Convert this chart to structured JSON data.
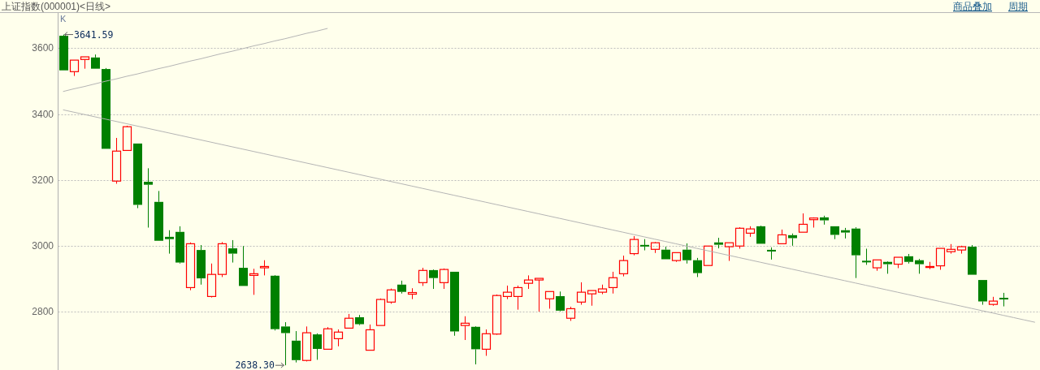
{
  "chart_data": {
    "type": "candlestick",
    "title": "上证指数(000001)<日线>",
    "categories": [
      null,
      null,
      null,
      null,
      null,
      null,
      null,
      null,
      null,
      null,
      null,
      null,
      null,
      null,
      null,
      null,
      null,
      null,
      null,
      null,
      null,
      null,
      null,
      null,
      null,
      null,
      null,
      null,
      null,
      null,
      null,
      null,
      null,
      null,
      null,
      null,
      null,
      null,
      null,
      null,
      null,
      null,
      null,
      null,
      null,
      null,
      null,
      null,
      null,
      null,
      null,
      null,
      null,
      null,
      null,
      null,
      null,
      null,
      null,
      null,
      null,
      null,
      null,
      null,
      null,
      null,
      null,
      null,
      null,
      null,
      null,
      null,
      null,
      null,
      null,
      null,
      null,
      null,
      null,
      null,
      null,
      null,
      null,
      null,
      null,
      null,
      null,
      null,
      null,
      null,
      null,
      null,
      null
    ],
    "ohlc": [
      [
        3638,
        3641.59,
        3533,
        3533
      ],
      [
        3529,
        3564,
        3516,
        3564
      ],
      [
        3566,
        3574,
        3538,
        3574
      ],
      [
        3572,
        3581,
        3538,
        3538
      ],
      [
        3537,
        3540,
        3295,
        3295
      ],
      [
        3197,
        3328,
        3189,
        3288
      ],
      [
        3290,
        3365,
        3290,
        3362
      ],
      [
        3311,
        3311,
        3115,
        3125
      ],
      [
        3195,
        3236,
        3056,
        3186
      ],
      [
        3134,
        3167,
        3016,
        3016
      ],
      [
        3028,
        3048,
        2977,
        3021
      ],
      [
        3043,
        3060,
        2947,
        2950
      ],
      [
        2874,
        3011,
        2866,
        3007
      ],
      [
        2988,
        3003,
        2883,
        2902
      ],
      [
        2847,
        2947,
        2844,
        2914
      ],
      [
        2914,
        3012,
        2906,
        3007
      ],
      [
        2993,
        3018,
        2950,
        2977
      ],
      [
        2934,
        3000,
        2879,
        2879
      ],
      [
        2911,
        2931,
        2852,
        2916
      ],
      [
        2934,
        2957,
        2911,
        2938
      ],
      [
        2910,
        2912,
        2744,
        2748
      ],
      [
        2756,
        2769,
        2638.3,
        2736
      ],
      [
        2713,
        2742,
        2647,
        2654
      ],
      [
        2653,
        2756,
        2650,
        2737
      ],
      [
        2732,
        2735,
        2655,
        2688
      ],
      [
        2687,
        2754,
        2687,
        2749
      ],
      [
        2719,
        2747,
        2696,
        2739
      ],
      [
        2751,
        2794,
        2751,
        2781
      ],
      [
        2784,
        2791,
        2760,
        2763
      ],
      [
        2684,
        2762,
        2684,
        2746
      ],
      [
        2759,
        2841,
        2759,
        2838
      ],
      [
        2830,
        2871,
        2825,
        2867
      ],
      [
        2883,
        2895,
        2856,
        2861
      ],
      [
        2854,
        2872,
        2839,
        2859
      ],
      [
        2889,
        2934,
        2879,
        2926
      ],
      [
        2927,
        2929,
        2870,
        2903
      ],
      [
        2889,
        2932,
        2870,
        2929
      ],
      [
        2922,
        2922,
        2728,
        2741
      ],
      [
        2759,
        2787,
        2715,
        2766
      ],
      [
        2755,
        2757,
        2641,
        2687
      ],
      [
        2687,
        2747,
        2667,
        2734
      ],
      [
        2733,
        2853,
        2731,
        2850
      ],
      [
        2847,
        2880,
        2839,
        2860
      ],
      [
        2847,
        2880,
        2807,
        2874
      ],
      [
        2887,
        2911,
        2870,
        2897
      ],
      [
        2897,
        2902,
        2801,
        2902
      ],
      [
        2840,
        2862,
        2810,
        2862
      ],
      [
        2848,
        2862,
        2802,
        2804
      ],
      [
        2781,
        2816,
        2773,
        2810
      ],
      [
        2830,
        2890,
        2822,
        2860
      ],
      [
        2855,
        2865,
        2819,
        2865
      ],
      [
        2860,
        2883,
        2854,
        2870
      ],
      [
        2874,
        2922,
        2856,
        2904
      ],
      [
        2916,
        2971,
        2908,
        2956
      ],
      [
        2977,
        3030,
        2972,
        3020
      ],
      [
        3003,
        3021,
        2987,
        2999
      ],
      [
        2990,
        3012,
        2979,
        3010
      ],
      [
        2989,
        2998,
        2960,
        2960
      ],
      [
        2956,
        2980,
        2952,
        2980
      ],
      [
        2989,
        3008,
        2947,
        2957
      ],
      [
        2957,
        2964,
        2906,
        2918
      ],
      [
        2941,
        3000,
        2941,
        3000
      ],
      [
        3011,
        3025,
        2993,
        3004
      ],
      [
        2998,
        3010,
        2955,
        3010
      ],
      [
        3000,
        3057,
        2992,
        3054
      ],
      [
        3039,
        3060,
        3028,
        3052
      ],
      [
        3060,
        3062,
        3007,
        3007
      ],
      [
        2988,
        2996,
        2959,
        2984
      ],
      [
        3007,
        3050,
        3007,
        3034
      ],
      [
        3033,
        3038,
        3001,
        3024
      ],
      [
        3042,
        3099,
        3042,
        3066
      ],
      [
        3080,
        3087,
        3056,
        3085
      ],
      [
        3087,
        3092,
        3065,
        3078
      ],
      [
        3060,
        3060,
        3021,
        3034
      ],
      [
        3048,
        3055,
        3023,
        3041
      ],
      [
        3053,
        3057,
        2903,
        2972
      ],
      [
        2954,
        2992,
        2943,
        2952
      ],
      [
        2934,
        2958,
        2925,
        2958
      ],
      [
        2952,
        2954,
        2916,
        2945
      ],
      [
        2945,
        2966,
        2933,
        2966
      ],
      [
        2969,
        2976,
        2947,
        2952
      ],
      [
        2957,
        2961,
        2916,
        2945
      ],
      [
        2935,
        2952,
        2930,
        2938
      ],
      [
        2940,
        2993,
        2928,
        2993
      ],
      [
        2983,
        3006,
        2977,
        2990
      ],
      [
        2988,
        3001,
        2977,
        2998
      ],
      [
        2998,
        3003,
        2913,
        2913
      ],
      [
        2897,
        2897,
        2822,
        2832
      ],
      [
        2823,
        2846,
        2819,
        2833
      ],
      [
        2843,
        2858,
        2817,
        2838
      ],
      null,
      null,
      null
    ],
    "colors": [
      "#008000",
      "#ff0000",
      "#ff0000",
      "#008000",
      "#008000",
      "#ff0000",
      "#ff0000",
      "#008000",
      "#008000",
      "#008000",
      "#008000",
      "#008000",
      "#ff0000",
      "#008000",
      "#ff0000",
      "#ff0000",
      "#008000",
      "#008000",
      "#ff0000",
      "#ff0000",
      "#008000",
      "#008000",
      "#008000",
      "#ff0000",
      "#008000",
      "#ff0000",
      "#ff0000",
      "#ff0000",
      "#008000",
      "#ff0000",
      "#ff0000",
      "#ff0000",
      "#008000",
      "#ff0000",
      "#ff0000",
      "#008000",
      "#ff0000",
      "#008000",
      "#ff0000",
      "#008000",
      "#ff0000",
      "#ff0000",
      "#ff0000",
      "#ff0000",
      "#ff0000",
      "#ff0000",
      "#ff0000",
      "#008000",
      "#ff0000",
      "#ff0000",
      "#ff0000",
      "#ff0000",
      "#ff0000",
      "#ff0000",
      "#ff0000",
      "#008000",
      "#ff0000",
      "#008000",
      "#ff0000",
      "#008000",
      "#008000",
      "#ff0000",
      "#008000",
      "#ff0000",
      "#ff0000",
      "#ff0000",
      "#008000",
      "#008000",
      "#ff0000",
      "#008000",
      "#ff0000",
      "#ff0000",
      "#008000",
      "#008000",
      "#008000",
      "#008000",
      "#008000",
      "#ff0000",
      "#008000",
      "#ff0000",
      "#008000",
      "#008000",
      "#ff0000",
      "#ff0000",
      "#ff0000",
      "#ff0000",
      "#008000",
      "#008000",
      "#ff0000",
      "#008000",
      null,
      null,
      null
    ],
    "series": [
      {
        "type": "line",
        "color": "#b4b4b4",
        "values": [
          3469,
          3477,
          3484,
          3492,
          3500,
          3507,
          3515,
          3522,
          3530,
          3538,
          3545,
          3553,
          3561,
          3568,
          3576,
          3584,
          3591,
          3599,
          3607,
          3614,
          3622,
          3629,
          3637,
          3645,
          3652,
          3660,
          null,
          null,
          null,
          null,
          null,
          null,
          null,
          null,
          null,
          null,
          null,
          null,
          null,
          null,
          null,
          null,
          null,
          null,
          null,
          null,
          null,
          null,
          null,
          null,
          null,
          null,
          null,
          null,
          null,
          null,
          null,
          null,
          null,
          null,
          null,
          null,
          null,
          null,
          null,
          null,
          null,
          null,
          null,
          null,
          null,
          null,
          null,
          null,
          null,
          null,
          null,
          null,
          null,
          null,
          null,
          null,
          null,
          null,
          null,
          null,
          null,
          null,
          null,
          null,
          null,
          null,
          null
        ]
      },
      {
        "type": "line",
        "color": "#b4b4b4",
        "values": [
          3413,
          3406,
          3399,
          3392,
          3385,
          3378,
          3371,
          3364,
          3357,
          3350,
          3343,
          3336,
          3329,
          3322,
          3315,
          3308,
          3301,
          3294,
          3287,
          3280,
          3273,
          3266,
          3259,
          3252,
          3245,
          3238,
          3231,
          3224,
          3217,
          3210,
          3203,
          3196,
          3189,
          3182,
          3175,
          3168,
          3161,
          3154,
          3147,
          3140,
          3133,
          3126,
          3119,
          3112,
          3105,
          3098,
          3091,
          3084,
          3077,
          3070,
          3063,
          3056,
          3049,
          3042,
          3035,
          3028,
          3021,
          3014,
          3007,
          3000,
          2993,
          2986,
          2979,
          2972,
          2965,
          2958,
          2951,
          2944,
          2937,
          2930,
          2923,
          2916,
          2909,
          2902,
          2895,
          2888,
          2881,
          2874,
          2867,
          2860,
          2853,
          2846,
          2839,
          2832,
          2825,
          2818,
          2811,
          2804,
          2797,
          2790,
          2783,
          2776,
          2769
        ]
      }
    ],
    "ylim": [
      2624,
      3707
    ],
    "yticks": [
      2800,
      3000,
      3200,
      3400,
      3600
    ],
    "grid": "y",
    "annotations": [
      "K",
      "3641.59",
      "2638.30",
      "商品叠加",
      "周期"
    ]
  }
}
